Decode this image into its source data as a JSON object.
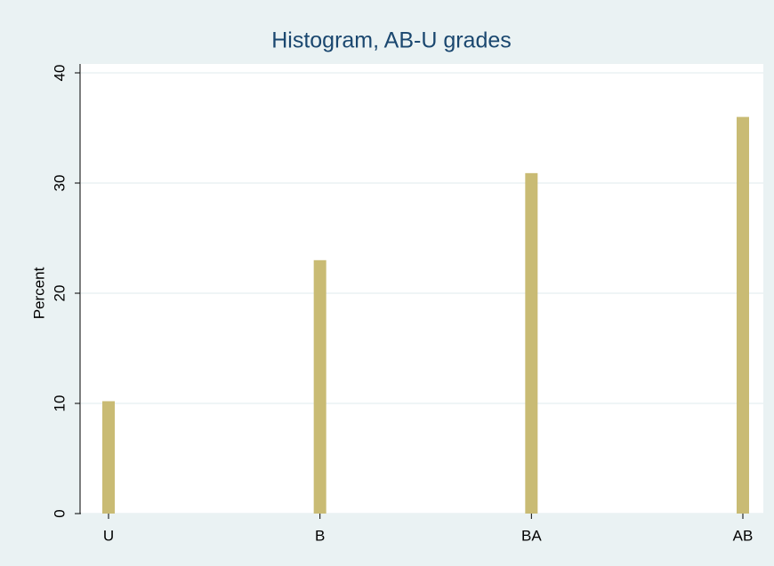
{
  "chart_data": {
    "type": "bar",
    "title": "Histogram, AB-U grades",
    "y_label": "Percent",
    "categories": [
      "U",
      "B",
      "BA",
      "AB"
    ],
    "values": [
      10.2,
      23.0,
      30.9,
      36.0
    ],
    "color": "#c9bb74",
    "ylim": [
      0,
      40
    ],
    "yticks": [
      0,
      10,
      20,
      30,
      40
    ],
    "grid": true
  }
}
